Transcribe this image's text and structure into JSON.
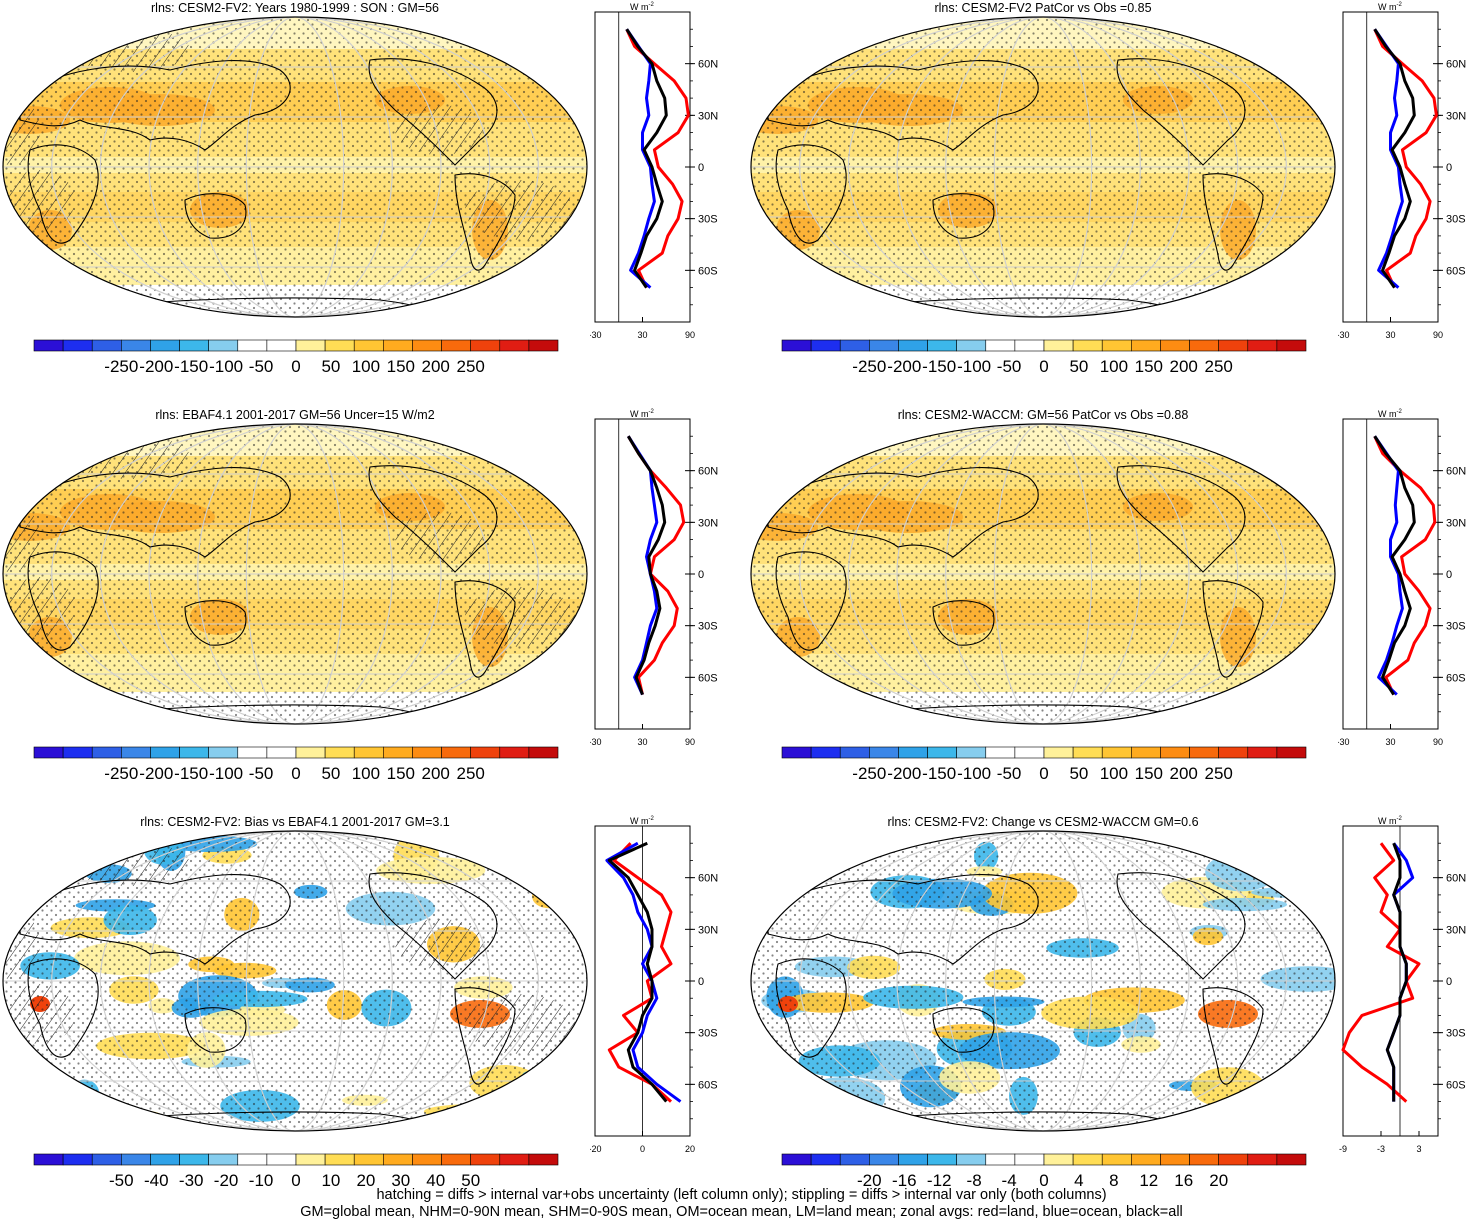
{
  "panels": [
    {
      "title": "rlns: CESM2-FV2: Years 1980-1999 : SON : GM=56",
      "cbar_ticks": [
        "-250",
        "-200",
        "-150",
        "-100",
        "-50",
        "0",
        "50",
        "100",
        "150",
        "200",
        "250"
      ],
      "zonal_xticks": [
        "-30",
        "30",
        "90"
      ],
      "zonal_unit": "W m",
      "zonal_unit_sup": "-2",
      "kind": "clim",
      "hatch": true
    },
    {
      "title": "rlns: CESM2-FV2 PatCor vs Obs =0.85",
      "cbar_ticks": [
        "-250",
        "-200",
        "-150",
        "-100",
        "-50",
        "0",
        "50",
        "100",
        "150",
        "200",
        "250"
      ],
      "zonal_xticks": [
        "-30",
        "30",
        "90"
      ],
      "zonal_unit": "W m",
      "zonal_unit_sup": "-2",
      "kind": "clim",
      "hatch": false
    },
    {
      "title": "rlns: EBAF4.1 2001-2017 GM=56 Uncer=15 W/m2",
      "cbar_ticks": [
        "-250",
        "-200",
        "-150",
        "-100",
        "-50",
        "0",
        "50",
        "100",
        "150",
        "200",
        "250"
      ],
      "zonal_xticks": [
        "-30",
        "30",
        "90"
      ],
      "zonal_unit": "W m",
      "zonal_unit_sup": "-2",
      "kind": "clim",
      "hatch": true
    },
    {
      "title": "rlns: CESM2-WACCM: GM=56 PatCor vs Obs =0.88",
      "cbar_ticks": [
        "-250",
        "-200",
        "-150",
        "-100",
        "-50",
        "0",
        "50",
        "100",
        "150",
        "200",
        "250"
      ],
      "zonal_xticks": [
        "-30",
        "30",
        "90"
      ],
      "zonal_unit": "W m",
      "zonal_unit_sup": "-2",
      "kind": "clim",
      "hatch": false
    },
    {
      "title": "rlns: CESM2-FV2: Bias vs EBAF4.1 2001-2017  GM=3.1",
      "cbar_ticks": [
        "-50",
        "-40",
        "-30",
        "-20",
        "-10",
        "0",
        "10",
        "20",
        "30",
        "40",
        "50"
      ],
      "zonal_xticks": [
        "-20",
        "0",
        "20"
      ],
      "zonal_unit": "W m",
      "zonal_unit_sup": "-2",
      "kind": "diff",
      "hatch": true
    },
    {
      "title": "rlns: CESM2-FV2: Change vs CESM2-WACCM GM=0.6",
      "cbar_ticks": [
        "-20",
        "-16",
        "-12",
        "-8",
        "-4",
        "0",
        "4",
        "8",
        "12",
        "16",
        "20"
      ],
      "zonal_xticks": [
        "-9",
        "-3",
        "3"
      ],
      "zonal_unit": "W m",
      "zonal_unit_sup": "-2",
      "kind": "diff",
      "hatch": false
    }
  ],
  "lat_labels": [
    "60N",
    "30N",
    "0",
    "30S",
    "60S"
  ],
  "colors": {
    "land": "red",
    "ocean": "blue",
    "all": "black"
  },
  "colorbar_palette": [
    "#2b0fd6",
    "#1d2ef0",
    "#2e5fe6",
    "#3a86e8",
    "#2fa2e8",
    "#3cb7ea",
    "#86cdee",
    "#ffffff",
    "#ffffff",
    "#fff19a",
    "#ffdd55",
    "#ffc533",
    "#ffab1f",
    "#fd8c12",
    "#f86a0c",
    "#ef420c",
    "#e01d13",
    "#c40b0b"
  ],
  "chart_data": [
    {
      "type": "heatmap",
      "title": "rlns: CESM2-FV2: Years 1980-1999 : SON : GM=56",
      "colorbar_range": [
        -250,
        250
      ],
      "global_mean": 56,
      "zonal": {
        "ylabels": [
          "60N",
          "30N",
          "0",
          "30S",
          "60S"
        ],
        "xlim": [
          -30,
          90
        ],
        "xticks": [
          -30,
          30,
          90
        ],
        "series": [
          {
            "name": "land",
            "color": "red",
            "lat": [
              80,
              70,
              60,
              50,
              40,
              30,
              20,
              10,
              0,
              -10,
              -20,
              -30,
              -40,
              -50,
              -60,
              -70
            ],
            "values": [
              10,
              20,
              45,
              70,
              85,
              88,
              75,
              45,
              50,
              68,
              80,
              75,
              62,
              55,
              25,
              35
            ]
          },
          {
            "name": "ocean",
            "color": "blue",
            "lat": [
              80,
              70,
              60,
              50,
              40,
              30,
              20,
              10,
              0,
              -10,
              -20,
              -30,
              -40,
              -50,
              -60,
              -70
            ],
            "values": [
              10,
              25,
              40,
              38,
              35,
              38,
              30,
              30,
              40,
              42,
              45,
              38,
              32,
              25,
              15,
              40
            ]
          },
          {
            "name": "all",
            "color": "black",
            "lat": [
              80,
              70,
              60,
              50,
              40,
              30,
              20,
              10,
              0,
              -10,
              -20,
              -30,
              -40,
              -50,
              -60,
              -70
            ],
            "values": [
              10,
              24,
              42,
              48,
              58,
              60,
              48,
              32,
              42,
              48,
              55,
              48,
              35,
              28,
              20,
              35
            ]
          }
        ]
      }
    },
    {
      "type": "heatmap",
      "title": "rlns: CESM2-FV2 PatCor vs Obs =0.85",
      "colorbar_range": [
        -250,
        250
      ],
      "zonal": {
        "ylabels": [
          "60N",
          "30N",
          "0",
          "30S",
          "60S"
        ],
        "xlim": [
          -30,
          90
        ],
        "xticks": [
          -30,
          30,
          90
        ],
        "series": [
          {
            "name": "land",
            "color": "red",
            "lat": [
              80,
              70,
              60,
              50,
              40,
              30,
              20,
              10,
              0,
              -10,
              -20,
              -30,
              -40,
              -50,
              -60,
              -70
            ],
            "values": [
              10,
              20,
              45,
              70,
              85,
              88,
              75,
              45,
              50,
              68,
              80,
              75,
              62,
              55,
              25,
              35
            ]
          },
          {
            "name": "ocean",
            "color": "blue",
            "lat": [
              80,
              70,
              60,
              50,
              40,
              30,
              20,
              10,
              0,
              -10,
              -20,
              -30,
              -40,
              -50,
              -60,
              -70
            ],
            "values": [
              10,
              25,
              40,
              38,
              35,
              38,
              30,
              30,
              40,
              42,
              45,
              38,
              32,
              25,
              15,
              40
            ]
          },
          {
            "name": "all",
            "color": "black",
            "lat": [
              80,
              70,
              60,
              50,
              40,
              30,
              20,
              10,
              0,
              -10,
              -20,
              -30,
              -40,
              -50,
              -60,
              -70
            ],
            "values": [
              10,
              24,
              42,
              48,
              58,
              60,
              48,
              32,
              42,
              48,
              55,
              48,
              35,
              28,
              20,
              35
            ]
          }
        ]
      }
    },
    {
      "type": "heatmap",
      "title": "rlns: EBAF4.1 2001-2017 GM=56 Uncer=15 W/m2",
      "colorbar_range": [
        -250,
        250
      ],
      "global_mean": 56,
      "uncertainty": 15,
      "zonal": {
        "ylabels": [
          "60N",
          "30N",
          "0",
          "30S",
          "60S"
        ],
        "xlim": [
          -30,
          90
        ],
        "xticks": [
          -30,
          30,
          90
        ],
        "series": [
          {
            "name": "land",
            "color": "red",
            "lat": [
              80,
              70,
              60,
              50,
              40,
              30,
              20,
              10,
              0,
              -10,
              -20,
              -30,
              -40,
              -50,
              -60,
              -70
            ],
            "values": [
              12,
              25,
              40,
              60,
              78,
              82,
              70,
              45,
              40,
              62,
              74,
              70,
              55,
              45,
              25,
              30
            ]
          },
          {
            "name": "ocean",
            "color": "blue",
            "lat": [
              80,
              70,
              60,
              50,
              40,
              30,
              20,
              10,
              0,
              -10,
              -20,
              -30,
              -40,
              -50,
              -60,
              -70
            ],
            "values": [
              12,
              26,
              40,
              42,
              45,
              48,
              40,
              35,
              40,
              45,
              48,
              40,
              35,
              30,
              20,
              30
            ]
          },
          {
            "name": "all",
            "color": "black",
            "lat": [
              80,
              70,
              60,
              50,
              40,
              30,
              20,
              10,
              0,
              -10,
              -20,
              -30,
              -40,
              -50,
              -60,
              -70
            ],
            "values": [
              12,
              25,
              40,
              48,
              55,
              58,
              50,
              38,
              40,
              48,
              52,
              46,
              38,
              32,
              22,
              30
            ]
          }
        ]
      }
    },
    {
      "type": "heatmap",
      "title": "rlns: CESM2-WACCM: GM=56 PatCor vs Obs =0.88",
      "colorbar_range": [
        -250,
        250
      ],
      "global_mean": 56,
      "zonal": {
        "ylabels": [
          "60N",
          "30N",
          "0",
          "30S",
          "60S"
        ],
        "xlim": [
          -30,
          90
        ],
        "xticks": [
          -30,
          30,
          90
        ],
        "series": [
          {
            "name": "land",
            "color": "red",
            "lat": [
              80,
              70,
              60,
              50,
              40,
              30,
              20,
              10,
              0,
              -10,
              -20,
              -30,
              -40,
              -50,
              -60,
              -70
            ],
            "values": [
              10,
              20,
              42,
              68,
              84,
              86,
              74,
              44,
              48,
              66,
              80,
              74,
              60,
              52,
              24,
              34
            ]
          },
          {
            "name": "ocean",
            "color": "blue",
            "lat": [
              80,
              70,
              60,
              50,
              40,
              30,
              20,
              10,
              0,
              -10,
              -20,
              -30,
              -40,
              -50,
              -60,
              -70
            ],
            "values": [
              10,
              25,
              40,
              38,
              36,
              38,
              30,
              30,
              40,
              42,
              45,
              38,
              32,
              25,
              15,
              38
            ]
          },
          {
            "name": "all",
            "color": "black",
            "lat": [
              80,
              70,
              60,
              50,
              40,
              30,
              20,
              10,
              0,
              -10,
              -20,
              -30,
              -40,
              -50,
              -60,
              -70
            ],
            "values": [
              10,
              24,
              42,
              48,
              58,
              60,
              48,
              32,
              42,
              48,
              55,
              48,
              35,
              28,
              20,
              34
            ]
          }
        ]
      }
    },
    {
      "type": "heatmap",
      "title": "rlns: CESM2-FV2: Bias vs EBAF4.1 2001-2017  GM=3.1",
      "colorbar_range": [
        -50,
        50
      ],
      "global_mean": 3.1,
      "zonal": {
        "ylabels": [
          "60N",
          "30N",
          "0",
          "30S",
          "60S"
        ],
        "xlim": [
          -20,
          20
        ],
        "xticks": [
          -20,
          0,
          20
        ],
        "series": [
          {
            "name": "land",
            "color": "red",
            "lat": [
              80,
              70,
              60,
              50,
              40,
              30,
              20,
              10,
              0,
              -10,
              -20,
              -30,
              -40,
              -50,
              -60,
              -70
            ],
            "values": [
              -5,
              -12,
              -2,
              8,
              12,
              10,
              8,
              12,
              2,
              4,
              -8,
              -2,
              -14,
              -10,
              4,
              12
            ]
          },
          {
            "name": "ocean",
            "color": "blue",
            "lat": [
              80,
              70,
              60,
              50,
              40,
              30,
              20,
              10,
              0,
              -10,
              -20,
              -30,
              -40,
              -50,
              -60,
              -70
            ],
            "values": [
              -2,
              -15,
              -8,
              -4,
              -2,
              2,
              4,
              0,
              4,
              6,
              2,
              0,
              -4,
              -2,
              6,
              16
            ]
          },
          {
            "name": "all",
            "color": "black",
            "lat": [
              80,
              70,
              60,
              50,
              40,
              30,
              20,
              10,
              0,
              -10,
              -20,
              -30,
              -40,
              -50,
              -60,
              -70
            ],
            "values": [
              2,
              -14,
              -6,
              -2,
              2,
              4,
              4,
              2,
              4,
              4,
              0,
              -2,
              -6,
              -4,
              4,
              10
            ]
          }
        ]
      }
    },
    {
      "type": "heatmap",
      "title": "rlns: CESM2-FV2: Change vs CESM2-WACCM GM=0.6",
      "colorbar_range": [
        -20,
        20
      ],
      "global_mean": 0.6,
      "zonal": {
        "ylabels": [
          "60N",
          "30N",
          "0",
          "30S",
          "60S"
        ],
        "xlim": [
          -9,
          6
        ],
        "xticks": [
          -9,
          -3,
          3
        ],
        "series": [
          {
            "name": "land",
            "color": "red",
            "lat": [
              80,
              70,
              60,
              50,
              40,
              30,
              20,
              10,
              0,
              -10,
              -20,
              -30,
              -40,
              -50,
              -60,
              -70
            ],
            "values": [
              -3,
              -1,
              -4,
              -2,
              -3,
              0,
              -2,
              3,
              1,
              2,
              -6,
              -8,
              -9,
              -6,
              -2,
              1
            ]
          },
          {
            "name": "ocean",
            "color": "blue",
            "lat": [
              80,
              70,
              60,
              50,
              40,
              30,
              20,
              10,
              0,
              -10,
              -20,
              -30,
              -40,
              -50,
              -60,
              -70
            ],
            "values": [
              -1,
              1,
              2,
              -1,
              0,
              0,
              0,
              1,
              1,
              0,
              0,
              -1,
              -2,
              -1,
              -1,
              -1
            ]
          },
          {
            "name": "all",
            "color": "black",
            "lat": [
              80,
              70,
              60,
              50,
              40,
              30,
              20,
              10,
              0,
              -10,
              -20,
              -30,
              -40,
              -50,
              -60,
              -70
            ],
            "values": [
              -1,
              0,
              0,
              -1,
              0,
              0,
              0,
              1,
              1,
              0,
              0,
              -1,
              -2,
              -1,
              -1,
              -1
            ]
          }
        ]
      }
    }
  ],
  "footer": {
    "line1": "hatching = diffs > internal var+obs uncertainty (left column only); stippling = diffs > internal var only (both columns)",
    "line2": "GM=global mean, NHM=0-90N mean, SHM=0-90S mean, OM=ocean mean, LM=land mean; zonal avgs: red=land, blue=ocean, black=all"
  }
}
